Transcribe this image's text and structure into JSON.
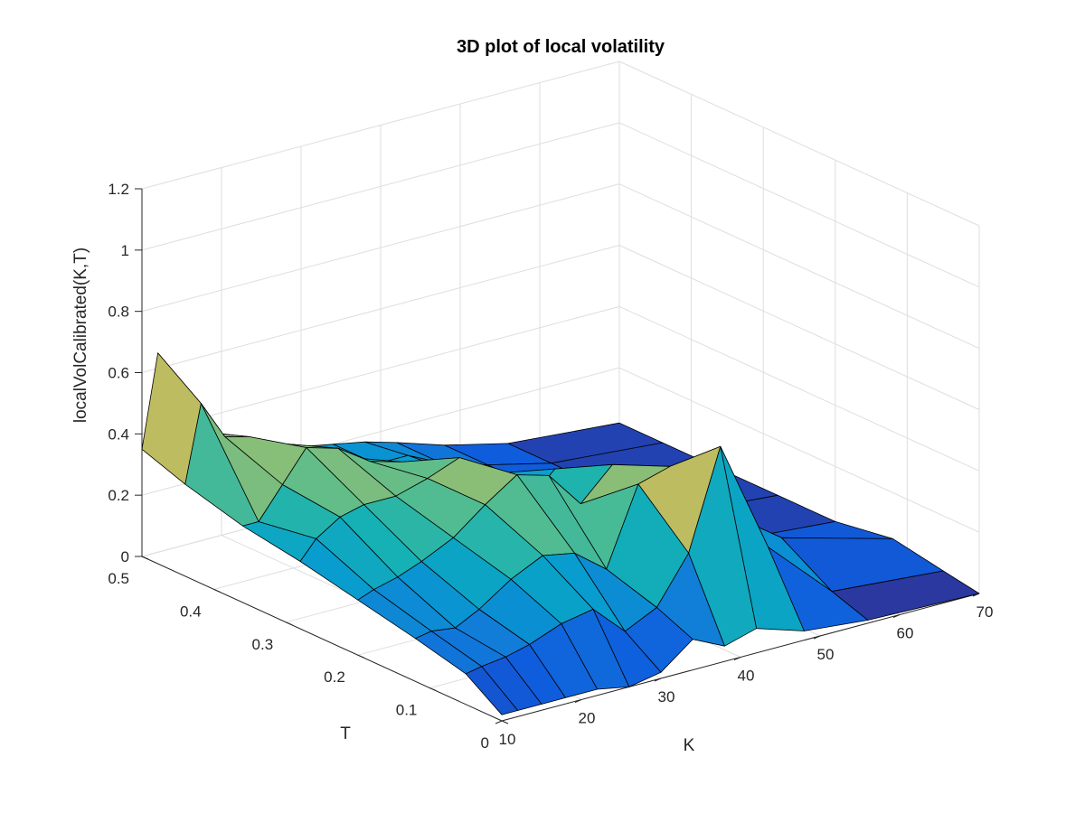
{
  "chart_data": {
    "type": "surface",
    "title": "3D plot of local volatility",
    "xlabel": "K",
    "ylabel": "T",
    "zlabel": "localVolCalibrated(K,T)",
    "xlim": [
      10,
      70
    ],
    "ylim": [
      0,
      0.5
    ],
    "zlim": [
      0,
      1.2
    ],
    "xticks": [
      "10",
      "20",
      "30",
      "40",
      "50",
      "60",
      "70"
    ],
    "yticks": [
      "0",
      "0.1",
      "0.2",
      "0.3",
      "0.4",
      "0.5"
    ],
    "zticks": [
      "0",
      "0.2",
      "0.4",
      "0.6",
      "0.8",
      "1",
      "1.2"
    ],
    "grid": true,
    "colormap": "parula",
    "K": [
      10,
      12,
      15,
      18,
      22,
      26,
      30,
      34,
      38,
      42,
      48,
      56,
      70
    ],
    "T": [
      0,
      0.05,
      0.12,
      0.2,
      0.28,
      0.36,
      0.44,
      0.5
    ],
    "Z": [
      [
        0.02,
        0.02,
        0.02,
        0.02,
        0.02,
        0.0,
        0.02,
        0.1,
        0.05,
        0.08,
        0.03,
        0.01,
        0.0
      ],
      [
        0.1,
        0.11,
        0.12,
        0.14,
        0.18,
        0.2,
        0.1,
        0.15,
        0.3,
        0.62,
        0.25,
        0.05,
        0.02
      ],
      [
        0.14,
        0.15,
        0.14,
        0.18,
        0.25,
        0.3,
        0.28,
        0.2,
        0.45,
        0.48,
        0.3,
        0.15,
        0.05
      ],
      [
        0.18,
        0.2,
        0.22,
        0.25,
        0.3,
        0.38,
        0.45,
        0.42,
        0.3,
        0.4,
        0.25,
        0.05,
        0.02
      ],
      [
        0.22,
        0.28,
        0.33,
        0.35,
        0.35,
        0.38,
        0.42,
        0.25,
        0.2,
        0.3,
        0.2,
        0.05,
        0.02
      ],
      [
        0.25,
        0.25,
        0.35,
        0.45,
        0.42,
        0.35,
        0.32,
        0.25,
        0.22,
        0.2,
        0.1,
        0.05,
        0.02
      ],
      [
        0.3,
        0.55,
        0.42,
        0.4,
        0.35,
        0.3,
        0.25,
        0.2,
        0.2,
        0.15,
        0.1,
        0.05,
        0.02
      ],
      [
        0.35,
        0.65,
        0.45,
        0.35,
        0.3,
        0.25,
        0.22,
        0.2,
        0.18,
        0.15,
        0.1,
        0.05,
        0.02
      ]
    ]
  }
}
